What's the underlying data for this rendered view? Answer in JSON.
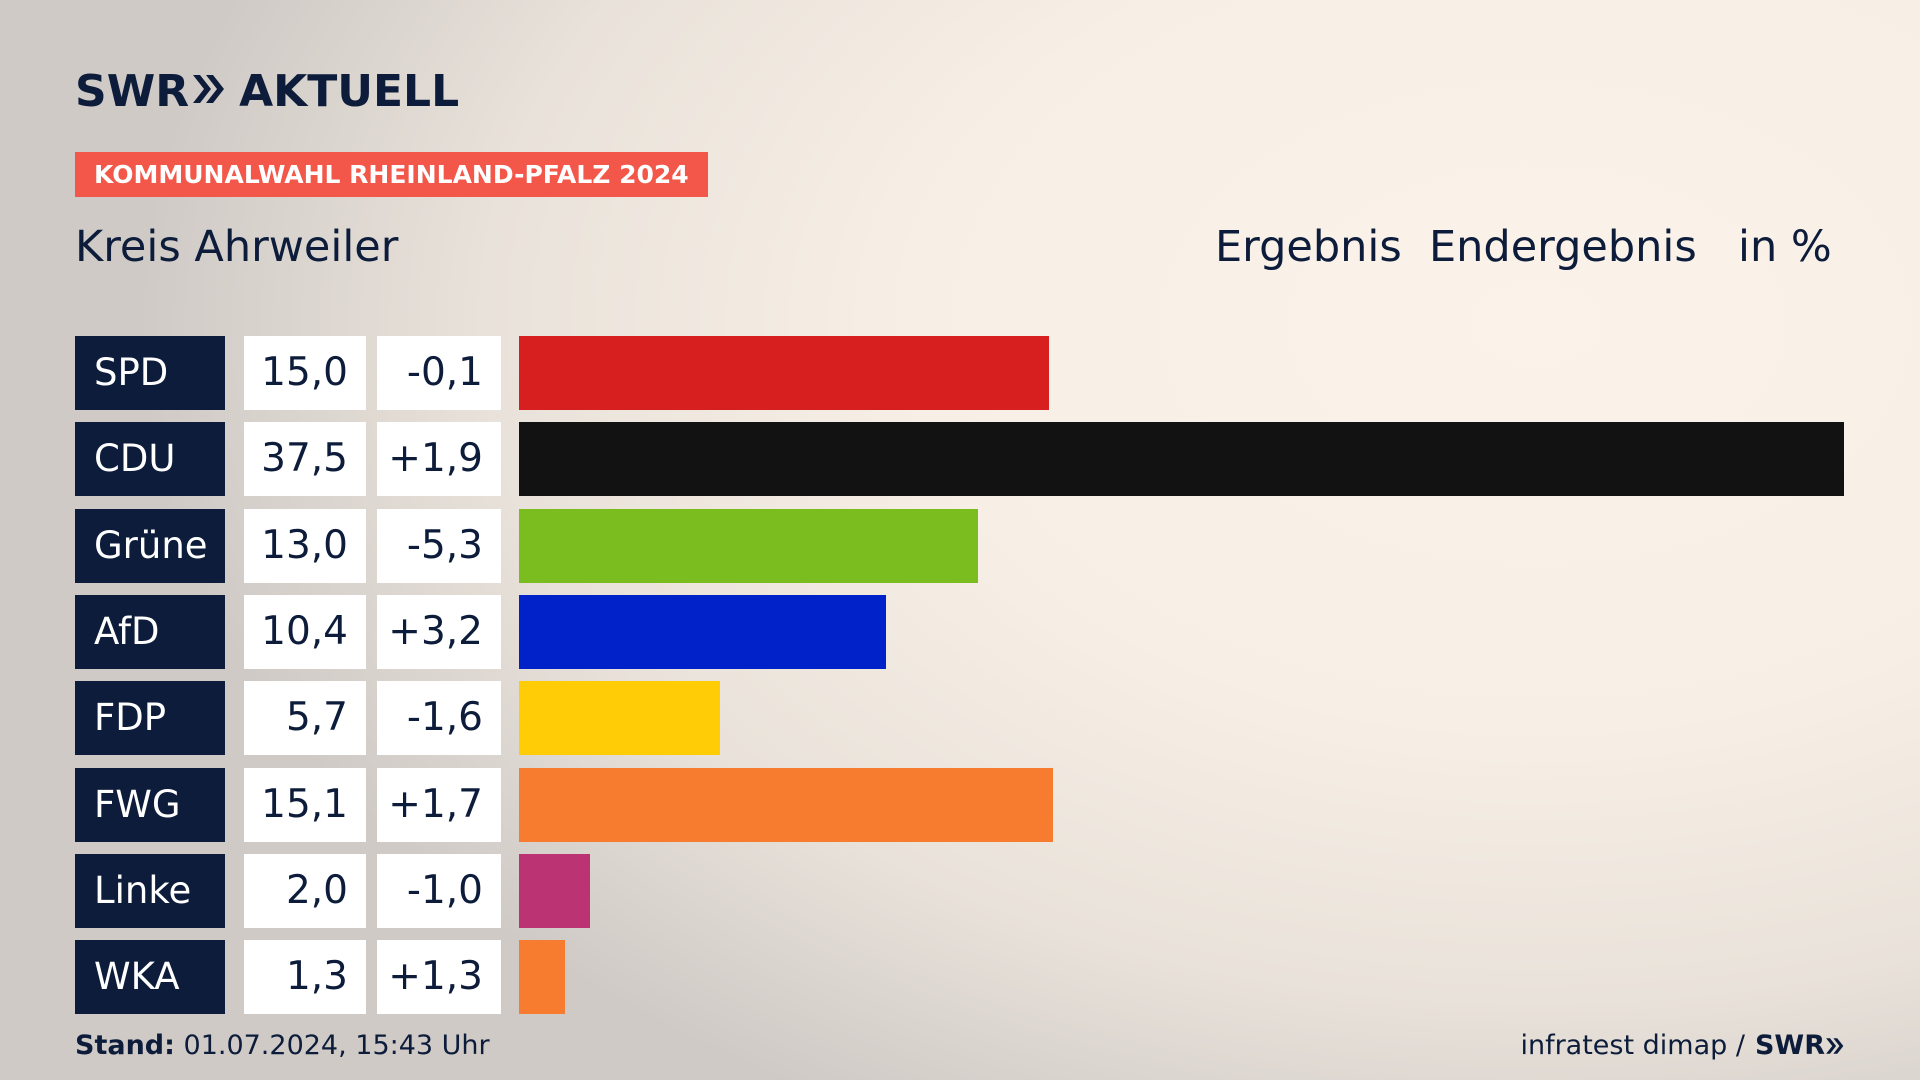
{
  "brand": {
    "logo_left": "SWR",
    "logo_right": "AKTUELL",
    "footer_logo": "SWR"
  },
  "badge": "KOMMUNALWAHL RHEINLAND-PFALZ 2024",
  "region": "Kreis Ahrweiler",
  "headers": {
    "result": "Ergebnis",
    "final": "Endergebnis",
    "unit": "in %"
  },
  "footer": {
    "stand_label": "Stand:",
    "stand_value": "01.07.2024, 15:43 Uhr",
    "source": "infratest dimap /"
  },
  "chart_data": {
    "type": "bar",
    "orientation": "horizontal",
    "title": "Kreis Ahrweiler",
    "unit": "in %",
    "categories": [
      "SPD",
      "CDU",
      "Grüne",
      "AfD",
      "FDP",
      "FWG",
      "Linke",
      "WKA"
    ],
    "values": [
      15.0,
      37.5,
      13.0,
      10.4,
      5.7,
      15.1,
      2.0,
      1.3
    ],
    "value_labels": [
      "15,0",
      "37,5",
      "13,0",
      "10,4",
      "5,7",
      "15,1",
      "2,0",
      "1,3"
    ],
    "diff_labels": [
      "-0,1",
      "+1,9",
      "-5,3",
      "+3,2",
      "-1,6",
      "+1,7",
      "-1,0",
      "+1,3"
    ],
    "colors": [
      "#d81f1f",
      "#121212",
      "#7bbd1e",
      "#0022c8",
      "#ffcc06",
      "#f77c30",
      "#bb3373",
      "#f77c30"
    ],
    "xlim": [
      0,
      37.5
    ]
  }
}
